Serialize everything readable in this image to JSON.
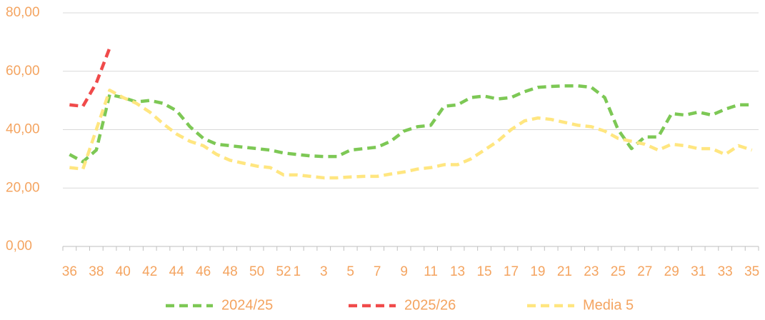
{
  "chart_data": {
    "type": "line",
    "categories": [
      "36",
      null,
      "38",
      null,
      "40",
      null,
      "42",
      null,
      "44",
      null,
      "46",
      null,
      "48",
      null,
      "50",
      null,
      "52",
      "1",
      null,
      "3",
      null,
      "5",
      null,
      "7",
      null,
      "9",
      null,
      "11",
      null,
      "13",
      null,
      "15",
      null,
      "17",
      null,
      "19",
      null,
      "21",
      null,
      "23",
      null,
      "25",
      null,
      "27",
      null,
      "29",
      null,
      "31",
      null,
      "33",
      null,
      "35"
    ],
    "series": [
      {
        "name": "2024/25",
        "color": "#7dc855",
        "values": [
          31.5,
          29,
          33,
          52,
          51,
          49.5,
          50,
          49,
          46.5,
          41,
          37,
          35,
          34.5,
          34,
          33.5,
          33,
          32,
          31.5,
          31,
          30.8,
          30.8,
          33,
          33.5,
          34,
          36,
          39.5,
          41,
          41.5,
          48,
          48.5,
          51,
          51.5,
          50.5,
          51,
          53,
          54.5,
          54.8,
          55,
          55,
          54.5,
          51,
          40,
          33.5,
          37.5,
          37.5,
          45.5,
          45,
          46,
          45,
          47,
          48.5,
          48.5
        ]
      },
      {
        "name": "2025/26",
        "color": "#f04a4a",
        "values": [
          48.5,
          48,
          56,
          68,
          null,
          null,
          null,
          null,
          null,
          null,
          null,
          null,
          null,
          null,
          null,
          null,
          null,
          null,
          null,
          null,
          null,
          null,
          null,
          null,
          null,
          null,
          null,
          null,
          null,
          null,
          null,
          null,
          null,
          null,
          null,
          null,
          null,
          null,
          null,
          null,
          null,
          null,
          null,
          null,
          null,
          null,
          null,
          null,
          null,
          null,
          null,
          null
        ]
      },
      {
        "name": "Media 5",
        "color": "#ffe680",
        "values": [
          27,
          26.5,
          40,
          53.5,
          51,
          49,
          46,
          42,
          38.5,
          36,
          34.5,
          31.5,
          29.5,
          28.5,
          27.5,
          27,
          24.5,
          24.5,
          24,
          23.5,
          23.5,
          23.8,
          24,
          24,
          24.8,
          25.5,
          26.5,
          27,
          28,
          28,
          30,
          33,
          36,
          40,
          43,
          44,
          43.5,
          42.5,
          41.5,
          41,
          39.5,
          37,
          36,
          35,
          33,
          35,
          34.5,
          33.5,
          33.5,
          31.5,
          34.5,
          33
        ]
      }
    ],
    "ylim": [
      0,
      80
    ],
    "yticks": [
      {
        "value": 0,
        "label": "0,00"
      },
      {
        "value": 20,
        "label": "20,00"
      },
      {
        "value": 40,
        "label": "40,00"
      },
      {
        "value": 60,
        "label": "60,00"
      },
      {
        "value": 80,
        "label": "80,00"
      }
    ],
    "grid": true,
    "legend": "bottom"
  }
}
